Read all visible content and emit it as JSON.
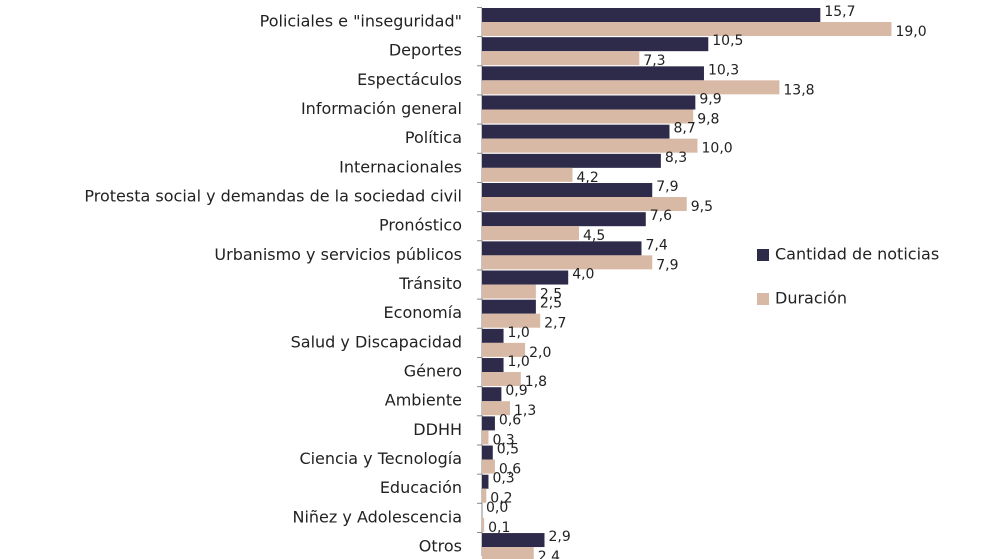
{
  "chart_data": {
    "type": "hbar",
    "categories": [
      "Policiales e \"inseguridad\"",
      "Deportes",
      "Espectáculos",
      "Información general",
      "Política",
      "Internacionales",
      "Protesta social y demandas de la sociedad civil",
      "Pronóstico",
      "Urbanismo y servicios públicos",
      "Tránsito",
      "Economía",
      "Salud y Discapacidad",
      "Género",
      "Ambiente",
      "DDHH",
      "Ciencia y Tecnología",
      "Educación",
      "Niñez y Adolescencia",
      "Otros"
    ],
    "series": [
      {
        "name": "Cantidad de noticias",
        "color": "#2e2a4a",
        "values": [
          15.7,
          10.5,
          10.3,
          9.9,
          8.7,
          8.3,
          7.9,
          7.6,
          7.4,
          4.0,
          2.5,
          1.0,
          1.0,
          0.9,
          0.6,
          0.5,
          0.3,
          0.0,
          2.9
        ],
        "value_labels": [
          "15,7",
          "10,5",
          "10,3",
          "9,9",
          "8,7",
          "8,3",
          "7,9",
          "7,6",
          "7,4",
          "4,0",
          "2,5",
          "1,0",
          "1,0",
          "0,9",
          "0,6",
          "0,5",
          "0,3",
          "0,0",
          "2,9"
        ]
      },
      {
        "name": "Duración",
        "color": "#d8b9a5",
        "values": [
          19.0,
          7.3,
          13.8,
          9.8,
          10.0,
          4.2,
          9.5,
          4.5,
          7.9,
          2.5,
          2.7,
          2.0,
          1.8,
          1.3,
          0.3,
          0.6,
          0.2,
          0.1,
          2.4
        ],
        "value_labels": [
          "19,0",
          "7,3",
          "13,8",
          "9,8",
          "10,0",
          "4,2",
          "9,5",
          "4,5",
          "7,9",
          "2,5",
          "2,7",
          "2,0",
          "1,8",
          "1,3",
          "0,3",
          "0,6",
          "0,2",
          "0,1",
          "2,4"
        ]
      }
    ],
    "xlim": [
      0,
      20
    ],
    "legend": "right"
  }
}
